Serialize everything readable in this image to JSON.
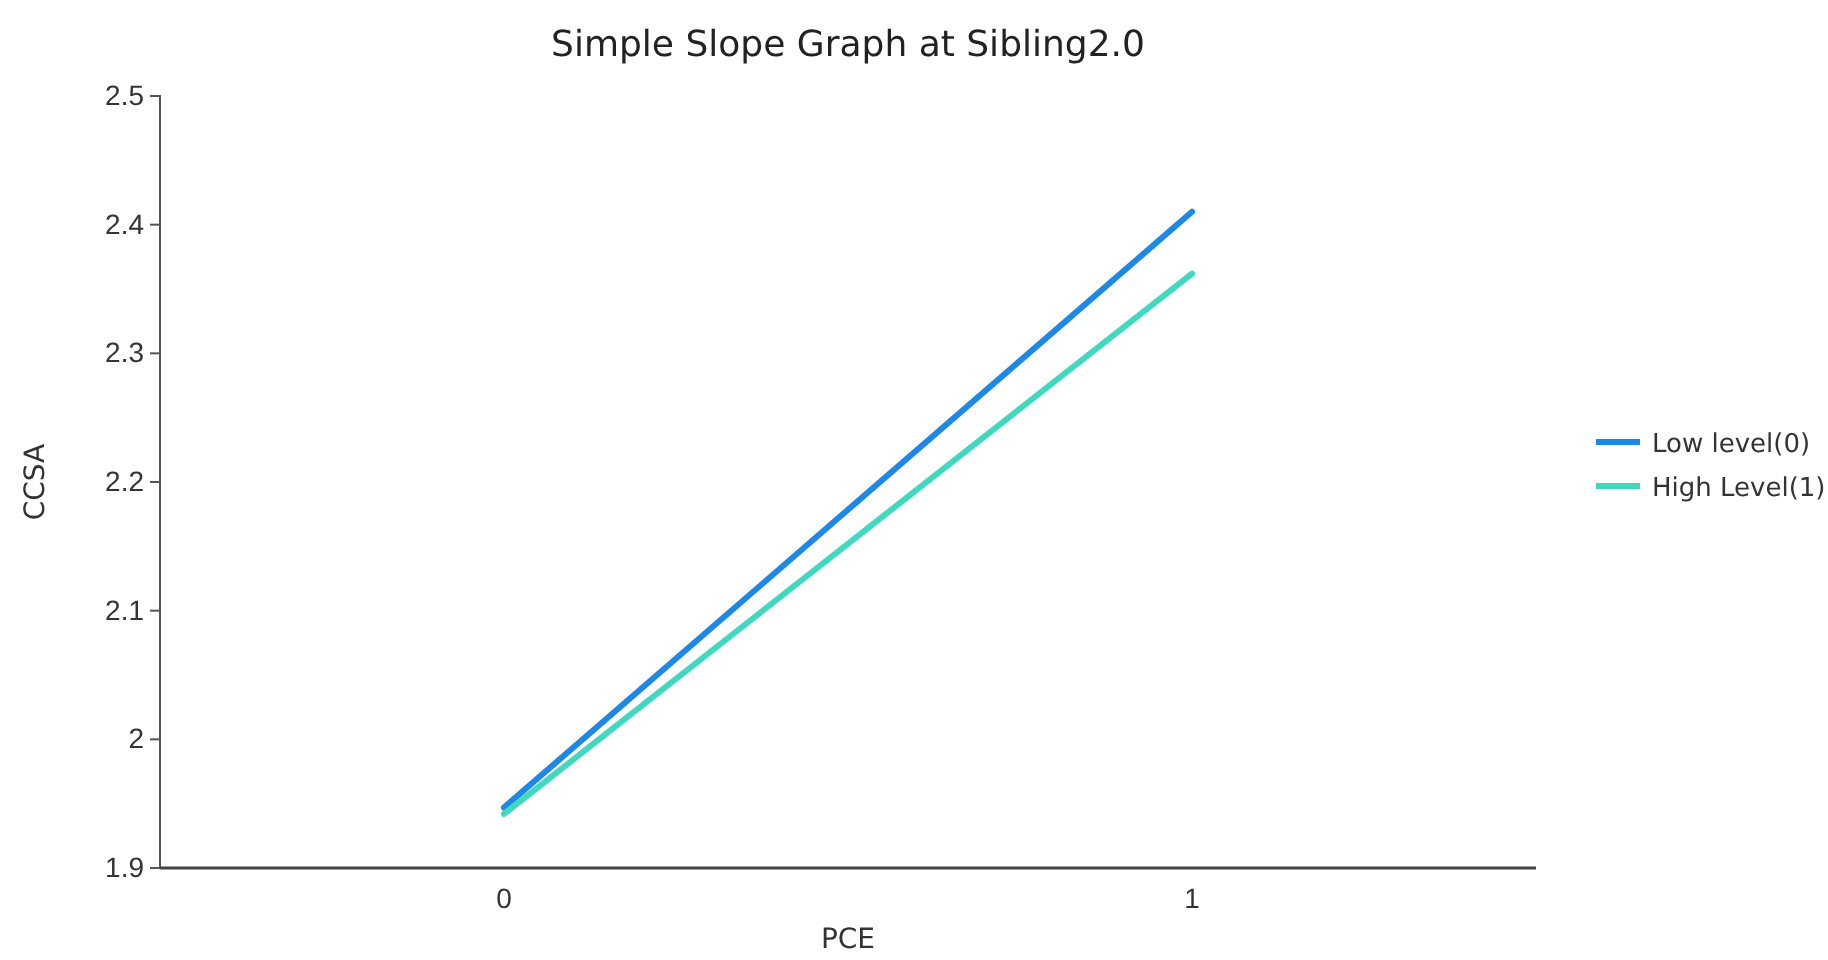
{
  "chart_data": {
    "type": "line",
    "title": "Simple Slope Graph at Sibling2.0",
    "xlabel": "PCE",
    "ylabel": "CCSA",
    "categories": [
      "0",
      "1"
    ],
    "series": [
      {
        "name": "Low level(0)",
        "color": "#1e88e5",
        "values": [
          1.947,
          2.41
        ]
      },
      {
        "name": "High Level(1)",
        "color": "#40d9c0",
        "values": [
          1.942,
          2.362
        ]
      }
    ],
    "ylim": [
      1.9,
      2.5
    ],
    "yticks": [
      1.9,
      2,
      2.1,
      2.2,
      2.3,
      2.4,
      2.5
    ],
    "grid": false,
    "legend": "right",
    "marker": "none",
    "line_style": "solid"
  }
}
